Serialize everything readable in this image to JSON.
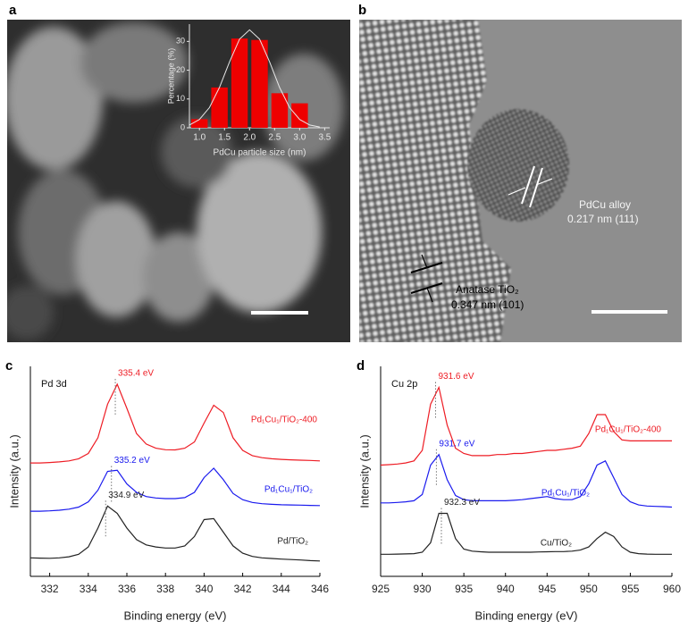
{
  "panels": {
    "labels": [
      "a",
      "b",
      "c",
      "d"
    ]
  },
  "micrograph_b": {
    "annotations": [
      "PdCu alloy",
      "0.217 nm (111)",
      "Anatase TiO₂",
      "0.347 nm (101)"
    ]
  },
  "chart_data": [
    {
      "type": "histogram",
      "x_label": "PdCu particle size (nm)",
      "y_label": "Percentage (%)",
      "color": "#ee0000",
      "bins": [
        0.8,
        1.2,
        1.6,
        2.0,
        2.4,
        2.8,
        3.2
      ],
      "counts": [
        3,
        14,
        31,
        30.5,
        12,
        8.5
      ],
      "fit": {
        "color": "#e8e8e8",
        "x": [
          0.8,
          1.0,
          1.2,
          1.4,
          1.6,
          1.8,
          2.0,
          2.2,
          2.4,
          2.6,
          2.8,
          3.0,
          3.2,
          3.4
        ],
        "values": [
          0.97,
          2.9,
          7.0,
          14.0,
          22.9,
          30.8,
          34,
          30.8,
          22.9,
          14.0,
          7.0,
          2.9,
          0.97,
          0.27
        ]
      },
      "xlim": [
        0.8,
        3.6
      ],
      "xticks": [
        {
          "value": 1,
          "label": "1.0"
        },
        {
          "value": 1.5,
          "label": "1.5"
        },
        {
          "value": 2,
          "label": "2.0"
        },
        {
          "value": 2.5,
          "label": "2.5"
        },
        {
          "value": 3,
          "label": "3.0"
        },
        {
          "value": 3.5,
          "label": "3.5"
        }
      ],
      "ylim": [
        0,
        36
      ],
      "yticks": [
        0,
        10,
        20,
        30
      ]
    },
    {
      "type": "line",
      "title": "Pd 3d",
      "x_label": "Binding energy (eV)",
      "y_label": "Intensity (a.u.)",
      "xlim": [
        331,
        346
      ],
      "xticks": [
        332,
        334,
        336,
        338,
        340,
        342,
        344,
        346
      ],
      "ylim": [
        0,
        100
      ],
      "x": [
        331,
        331.5,
        332,
        332.5,
        333,
        333.5,
        334,
        334.5,
        335,
        335.5,
        336,
        336.5,
        337,
        337.5,
        338,
        338.5,
        339,
        339.5,
        340,
        340.5,
        341,
        341.5,
        342,
        342.5,
        343,
        343.5,
        344,
        344.5,
        345,
        345.5,
        346
      ],
      "series": [
        {
          "name": "Pd₁Cu₁/TiO₂-400",
          "color": "#ee1c24",
          "peak": 335.4,
          "peak_label": "335.4 eV",
          "values": [
            54,
            54,
            54.2,
            54.5,
            55,
            56,
            58.5,
            66,
            82,
            91.5,
            80,
            68,
            63,
            61,
            60.3,
            60.2,
            61,
            64,
            73,
            81.5,
            78,
            66,
            60,
            57.5,
            56.5,
            56,
            55.7,
            55.5,
            55.3,
            55.2,
            55
          ]
        },
        {
          "name": "Pd₁Cu₁/TiO₂",
          "color": "#1a1aee",
          "peak": 335.2,
          "peak_label": "335.2 eV",
          "values": [
            31,
            31,
            31.2,
            31.5,
            32,
            33,
            35.5,
            41,
            50,
            50.5,
            44,
            40,
            38,
            37.3,
            37,
            37,
            37.5,
            40,
            47,
            51.5,
            46,
            39.5,
            36.5,
            35.2,
            34.6,
            34.3,
            34.1,
            34,
            33.9,
            33.8,
            33.7
          ]
        },
        {
          "name": "Pd/TiO₂",
          "color": "#222222",
          "peak": 334.9,
          "peak_label": "334.9 eV",
          "values": [
            8.8,
            8.7,
            8.6,
            8.8,
            9.3,
            10.5,
            14,
            23,
            33.5,
            30,
            23,
            17.5,
            15,
            14,
            13.5,
            13.5,
            14.5,
            19,
            27,
            27.5,
            21,
            14.5,
            11,
            9.5,
            8.8,
            8.5,
            8.2,
            8,
            7.8,
            7.5,
            7.3
          ]
        }
      ]
    },
    {
      "type": "line",
      "title": "Cu 2p",
      "x_label": "Binding energy (eV)",
      "y_label": "Intensity (a.u.)",
      "xlim": [
        925,
        960
      ],
      "xticks": [
        925,
        930,
        935,
        940,
        945,
        950,
        955,
        960
      ],
      "ylim": [
        0,
        100
      ],
      "x": [
        925,
        926,
        927,
        928,
        929,
        930,
        931,
        932,
        933,
        934,
        935,
        936,
        937,
        938,
        939,
        940,
        941,
        942,
        943,
        944,
        945,
        946,
        947,
        948,
        949,
        950,
        951,
        952,
        953,
        954,
        955,
        956,
        957,
        958,
        959,
        960
      ],
      "series": [
        {
          "name": "Pd₁Cu₁/TiO₂-400",
          "color": "#ee1c24",
          "peak": 931.6,
          "peak_label": "931.6 eV",
          "values": [
            53,
            53.2,
            53.5,
            54,
            55,
            60,
            82,
            90,
            72,
            61,
            58.5,
            57.5,
            57.5,
            57.5,
            58,
            58,
            58.5,
            58.5,
            59,
            59.5,
            60,
            60,
            60.5,
            61,
            62,
            68,
            77,
            77,
            69,
            65,
            64.5,
            64.5,
            64.5,
            64.5,
            64.5,
            64.5
          ]
        },
        {
          "name": "Pd₁Cu₁/TiO₂",
          "color": "#1a1aee",
          "peak": 931.7,
          "peak_label": "931.7 eV",
          "values": [
            35,
            35,
            35.2,
            35.5,
            36,
            39,
            53,
            58,
            46,
            38.5,
            36.5,
            36,
            36,
            36,
            36,
            36,
            36.2,
            36.5,
            37,
            37.5,
            38,
            37,
            36.5,
            36.5,
            38,
            44,
            53,
            55,
            47,
            39,
            35.5,
            34,
            33.5,
            33.3,
            33.2,
            33
          ]
        },
        {
          "name": "Cu/TiO₂",
          "color": "#222222",
          "peak": 932.3,
          "peak_label": "932.3 eV",
          "values": [
            10.5,
            10.5,
            10.6,
            10.7,
            10.8,
            11.5,
            16,
            30,
            30,
            18,
            13,
            12,
            11.7,
            11.5,
            11.5,
            11.5,
            11.5,
            11.5,
            11.5,
            11.6,
            11.7,
            11.8,
            11.8,
            12,
            12.5,
            14,
            18,
            21,
            19,
            14,
            11.5,
            10.8,
            10.6,
            10.5,
            10.5,
            10.5
          ]
        }
      ]
    }
  ]
}
